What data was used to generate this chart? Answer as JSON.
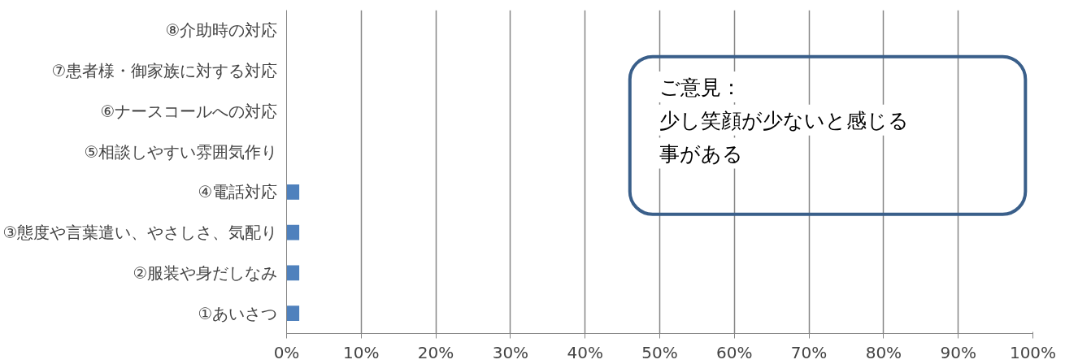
{
  "chart_data": {
    "type": "bar",
    "orientation": "horizontal",
    "categories": [
      "⑧介助時の対応",
      "⑦患者様・御家族に対する対応",
      "⑥ナースコールへの対応",
      "⑤相談しやすい雰囲気作り",
      "④電話対応",
      "③態度や言葉遣い、やさしさ、気配り",
      "②服装や身だしなみ",
      "①あいさつ"
    ],
    "values": [
      0,
      0,
      0,
      0,
      1.7,
      1.7,
      1.7,
      1.7
    ],
    "color": "#4f81bd",
    "xlim": [
      0,
      100
    ],
    "xticks": [
      {
        "value": 0,
        "label": "0%"
      },
      {
        "value": 10,
        "label": "10%"
      },
      {
        "value": 20,
        "label": "20%"
      },
      {
        "value": 30,
        "label": "30%"
      },
      {
        "value": 40,
        "label": "40%"
      },
      {
        "value": 50,
        "label": "50%"
      },
      {
        "value": 60,
        "label": "60%"
      },
      {
        "value": 70,
        "label": "70%"
      },
      {
        "value": 80,
        "label": "80%"
      },
      {
        "value": 90,
        "label": "90%"
      },
      {
        "value": 100,
        "label": "100%"
      }
    ],
    "grid": "x",
    "annotations": [
      "ご意見：",
      "少し笑顔が少ないと感じる",
      "事がある"
    ]
  }
}
